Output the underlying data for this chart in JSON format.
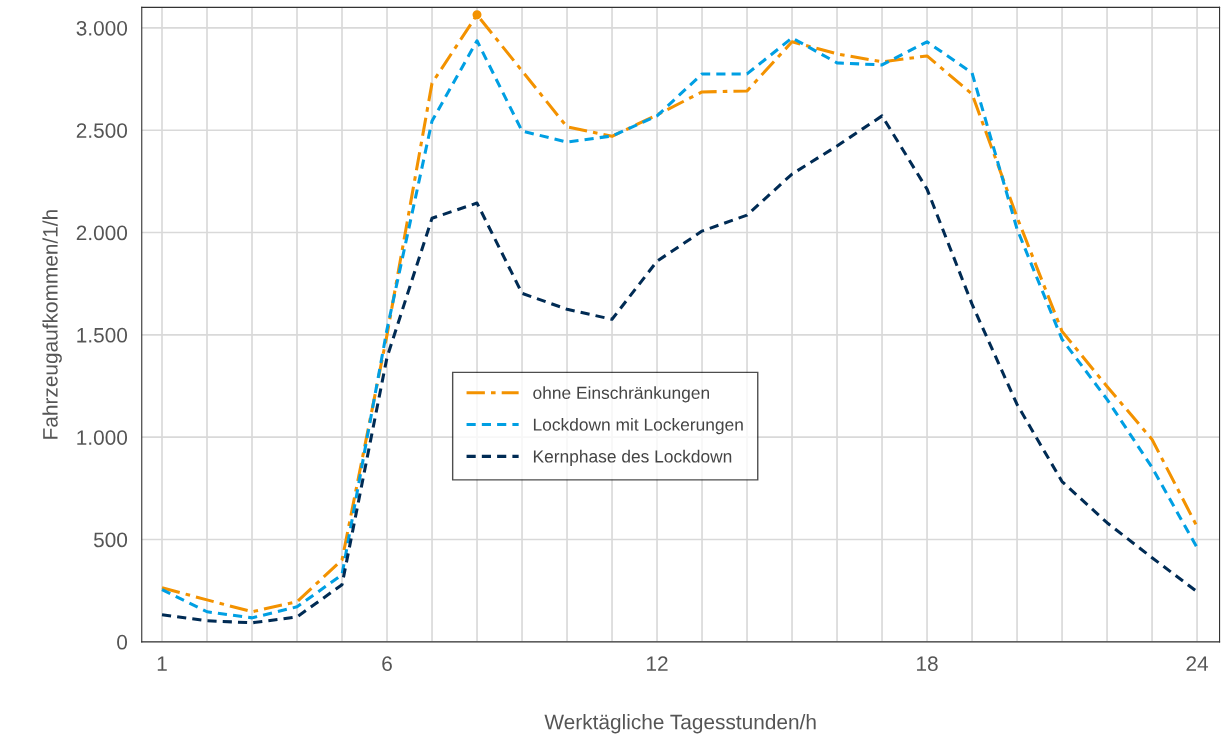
{
  "chart_data": {
    "type": "line",
    "xlabel": "Werktägliche Tagesstunden/h",
    "ylabel": "Fahrzeugaufkommen/1/h",
    "x": [
      1,
      2,
      3,
      4,
      5,
      6,
      7,
      8,
      9,
      10,
      11,
      12,
      13,
      14,
      15,
      16,
      17,
      18,
      19,
      20,
      21,
      22,
      23,
      24
    ],
    "xlim": [
      0.55,
      24.5
    ],
    "xticks": [
      {
        "value": 1,
        "label": "1"
      },
      {
        "value": 2,
        "label": null
      },
      {
        "value": 3,
        "label": null
      },
      {
        "value": 4,
        "label": null
      },
      {
        "value": 5,
        "label": null
      },
      {
        "value": 6,
        "label": "6"
      },
      {
        "value": 7,
        "label": null
      },
      {
        "value": 8,
        "label": null
      },
      {
        "value": 9,
        "label": null
      },
      {
        "value": 10,
        "label": null
      },
      {
        "value": 11,
        "label": null
      },
      {
        "value": 12,
        "label": "12"
      },
      {
        "value": 13,
        "label": null
      },
      {
        "value": 14,
        "label": null
      },
      {
        "value": 15,
        "label": null
      },
      {
        "value": 16,
        "label": null
      },
      {
        "value": 17,
        "label": null
      },
      {
        "value": 18,
        "label": "18"
      },
      {
        "value": 19,
        "label": null
      },
      {
        "value": 20,
        "label": null
      },
      {
        "value": 21,
        "label": null
      },
      {
        "value": 22,
        "label": null
      },
      {
        "value": 23,
        "label": null
      },
      {
        "value": 24,
        "label": "24"
      }
    ],
    "ylim": [
      0,
      3100
    ],
    "yticks": [
      {
        "value": 0,
        "label": "0"
      },
      {
        "value": 500,
        "label": "500"
      },
      {
        "value": 1000,
        "label": "1.000"
      },
      {
        "value": 1500,
        "label": "1.500"
      },
      {
        "value": 2000,
        "label": "2.000"
      },
      {
        "value": 2500,
        "label": "2.500"
      },
      {
        "value": 3000,
        "label": "3.000"
      }
    ],
    "grid": true,
    "legend": "center",
    "marker": "none",
    "series": [
      {
        "name": "ohne Einschränkungen",
        "color": "#f39200",
        "line_style": "dashdot",
        "values": [
          264,
          205,
          147,
          196,
          400,
          1500,
          2730,
          3064,
          2790,
          2516,
          2470,
          2575,
          2687,
          2692,
          2932,
          2873,
          2834,
          2863,
          2677,
          2075,
          1517,
          1248,
          989,
          563
        ]
      },
      {
        "name": "Lockdown mit Lockerungen",
        "color": "#009fe3",
        "line_style": "dashed",
        "values": [
          255,
          147,
          117,
          171,
          328,
          1527,
          2545,
          2937,
          2496,
          2442,
          2472,
          2570,
          2775,
          2775,
          2951,
          2829,
          2819,
          2932,
          2780,
          2017,
          1478,
          1185,
          852,
          460
        ]
      },
      {
        "name": "Kernphase des Lockdown",
        "color": "#002b54",
        "line_style": "dashed",
        "values": [
          132,
          103,
          93,
          122,
          279,
          1390,
          2070,
          2144,
          1703,
          1625,
          1576,
          1860,
          2007,
          2085,
          2286,
          2423,
          2570,
          2212,
          1650,
          1160,
          783,
          582,
          411,
          245
        ]
      },
      {
        "type": "scatter",
        "color": "#f39200",
        "marker": "circle",
        "x": [
          8
        ],
        "values": [
          3064
        ]
      }
    ]
  }
}
